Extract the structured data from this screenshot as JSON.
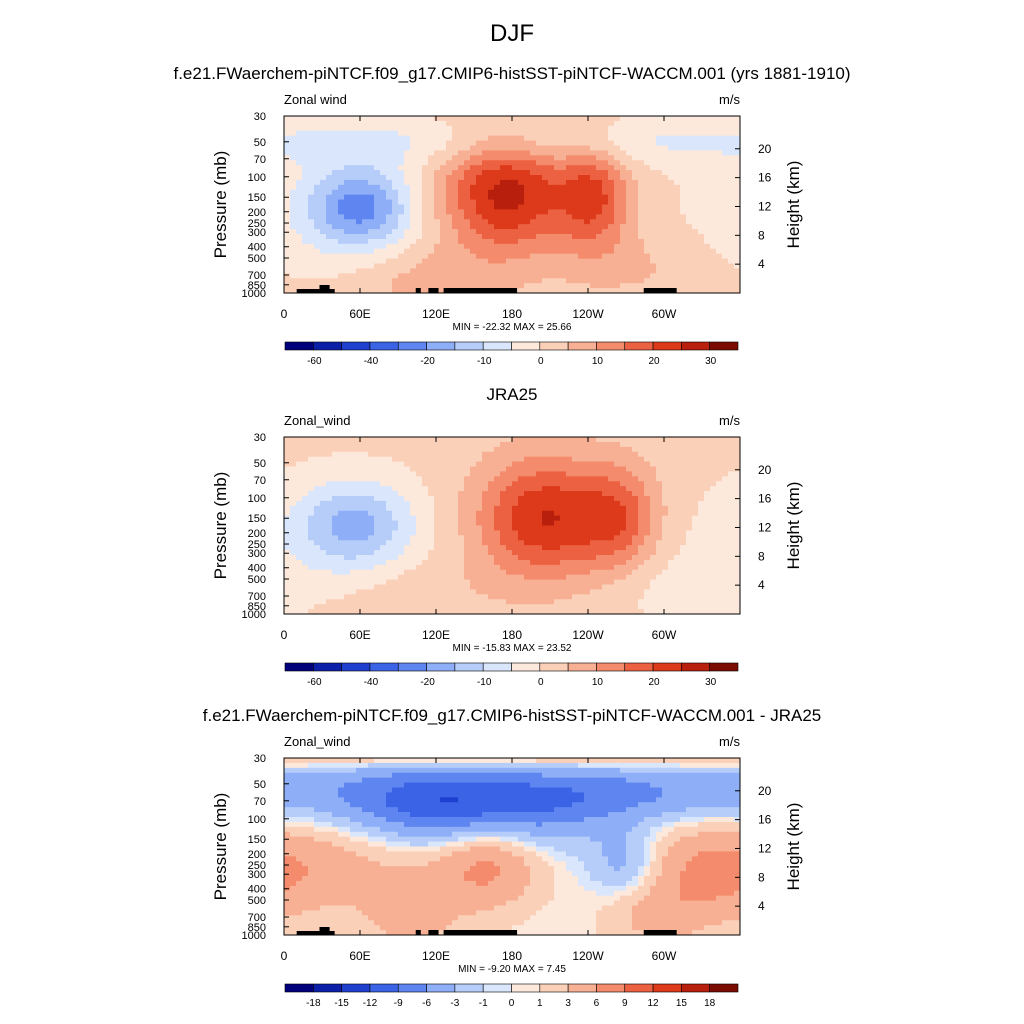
{
  "figure": {
    "title": "DJF",
    "x_ticks": [
      "0",
      "60E",
      "120E",
      "180",
      "120W",
      "60W"
    ],
    "pressure_ticks": [
      "30",
      "50",
      "70",
      "100",
      "150",
      "200",
      "250",
      "300",
      "400",
      "500",
      "700",
      "850",
      "1000"
    ],
    "height_ticks": [
      "20",
      "16",
      "12",
      "8",
      "4"
    ],
    "left_axis_label": "Pressure (mb)",
    "right_axis_label": "Height (km)"
  },
  "colorscales": {
    "full": {
      "colors": [
        "#00007a",
        "#0b1fa8",
        "#1f3fcf",
        "#3a63e6",
        "#5f86f0",
        "#8eaef7",
        "#b6cdfa",
        "#d9e6fb",
        "#fde9dc",
        "#fbd0b8",
        "#f8b094",
        "#f48b6c",
        "#ec6142",
        "#dc3a1a",
        "#b81f0c",
        "#7a0c02"
      ],
      "tick_labels": [
        "-60",
        "-40",
        "-20",
        "-10",
        "0",
        "10",
        "20",
        "30"
      ]
    },
    "diff": {
      "colors": [
        "#00007a",
        "#0b1fa8",
        "#1f3fcf",
        "#3a63e6",
        "#5f86f0",
        "#8eaef7",
        "#b6cdfa",
        "#d9e6fb",
        "#fde9dc",
        "#fbd0b8",
        "#f8b094",
        "#f48b6c",
        "#ec6142",
        "#dc3a1a",
        "#b81f0c",
        "#7a0c02"
      ],
      "tick_labels": [
        "-18",
        "-15",
        "-12",
        "-9",
        "-6",
        "-3",
        "-1",
        "0",
        "1",
        "3",
        "6",
        "9",
        "12",
        "15",
        "18"
      ]
    }
  },
  "chart_data": [
    {
      "type": "heatmap",
      "panel_title": "f.e21.FWaerchem-piNTCF.f09_g17.CMIP6-histSST-piNTCF-WACCM.001 (yrs 1881-1910)",
      "variable_label": "Zonal wind",
      "units_label": "m/s",
      "stats_text": "MIN = -22.32  MAX =  25.66",
      "min": -22.32,
      "max": 25.66,
      "scale": "full",
      "xlim": [
        0,
        360
      ],
      "ylim_pressure_mb": [
        1000,
        30
      ],
      "show_topography": true,
      "features": [
        {
          "lon": 60,
          "p": 180,
          "value": -20,
          "dlon": 28,
          "dz": 0.55
        },
        {
          "lon": 40,
          "p": 230,
          "value": -5,
          "dlon": 60,
          "dz": 0.9
        },
        {
          "lon": 175,
          "p": 140,
          "value": 25.66,
          "dlon": 36,
          "dz": 0.85
        },
        {
          "lon": 245,
          "p": 150,
          "value": 18,
          "dlon": 20,
          "dz": 0.75
        },
        {
          "lon": 110,
          "p": 800,
          "value": 6,
          "dlon": 40,
          "dz": 0.5
        },
        {
          "lon": 280,
          "p": 600,
          "value": 4,
          "dlon": 40,
          "dz": 0.5
        },
        {
          "lon": 180,
          "p": 50,
          "value": -7,
          "dlon": 400,
          "dz": 0.35
        }
      ]
    },
    {
      "type": "heatmap",
      "panel_title": "JRA25",
      "variable_label": "Zonal_wind",
      "units_label": "m/s",
      "stats_text": "MIN = -15.83  MAX =  23.52",
      "min": -15.83,
      "max": 23.52,
      "scale": "full",
      "xlim": [
        0,
        360
      ],
      "ylim_pressure_mb": [
        1000,
        30
      ],
      "show_topography": false,
      "features": [
        {
          "lon": 55,
          "p": 170,
          "value": -15.83,
          "dlon": 32,
          "dz": 0.6
        },
        {
          "lon": 40,
          "p": 300,
          "value": -4,
          "dlon": 70,
          "dz": 1.0
        },
        {
          "lon": 205,
          "p": 150,
          "value": 23.52,
          "dlon": 38,
          "dz": 0.85
        },
        {
          "lon": 265,
          "p": 150,
          "value": 14,
          "dlon": 22,
          "dz": 0.75
        },
        {
          "lon": 100,
          "p": 700,
          "value": 4,
          "dlon": 50,
          "dz": 0.6
        },
        {
          "lon": 300,
          "p": 600,
          "value": -3,
          "dlon": 40,
          "dz": 0.5
        }
      ]
    },
    {
      "type": "heatmap",
      "panel_title": "f.e21.FWaerchem-piNTCF.f09_g17.CMIP6-histSST-piNTCF-WACCM.001 - JRA25",
      "variable_label": "Zonal_wind",
      "units_label": "m/s",
      "stats_text": "MIN =  -9.20  MAX =   7.45",
      "min": -9.2,
      "max": 7.45,
      "scale": "diff",
      "xlim": [
        0,
        360
      ],
      "ylim_pressure_mb": [
        1000,
        30
      ],
      "show_topography": true,
      "features": [
        {
          "lon": 150,
          "p": 90,
          "value": -9.2,
          "dlon": 60,
          "dz": 0.55
        },
        {
          "lon": 100,
          "p": 60,
          "value": -6,
          "dlon": 80,
          "dz": 0.45
        },
        {
          "lon": 270,
          "p": 60,
          "value": -6,
          "dlon": 60,
          "dz": 0.4
        },
        {
          "lon": 160,
          "p": 220,
          "value": 7.45,
          "dlon": 30,
          "dz": 0.7
        },
        {
          "lon": 270,
          "p": 250,
          "value": -5,
          "dlon": 20,
          "dz": 0.5
        },
        {
          "lon": 330,
          "p": 300,
          "value": 5,
          "dlon": 40,
          "dz": 0.7
        },
        {
          "lon": 40,
          "p": 250,
          "value": 4,
          "dlon": 60,
          "dz": 0.7
        },
        {
          "lon": 100,
          "p": 700,
          "value": 4,
          "dlon": 25,
          "dz": 0.5
        },
        {
          "lon": 290,
          "p": 700,
          "value": 3,
          "dlon": 30,
          "dz": 0.5
        },
        {
          "lon": 180,
          "p": 30,
          "value": 4,
          "dlon": 400,
          "dz": 0.15
        }
      ]
    }
  ]
}
